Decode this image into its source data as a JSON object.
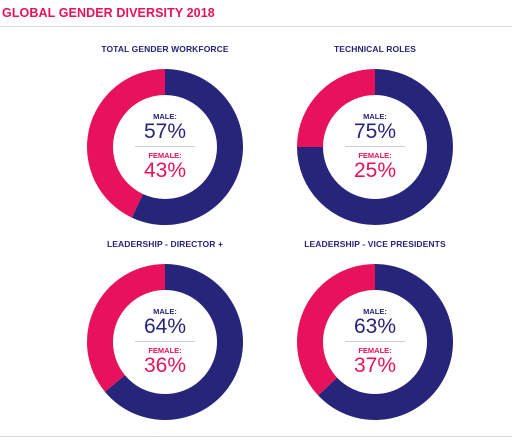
{
  "title": "GLOBAL GENDER DIVERSITY 2018",
  "colors": {
    "male": "#27257a",
    "female": "#e8115b",
    "title": "#e8115b"
  },
  "chart_data": [
    {
      "type": "pie",
      "title": "TOTAL GENDER WORKFORCE",
      "male_label": "MALE:",
      "female_label": "FEMALE:",
      "male_text": "57%",
      "female_text": "43%",
      "categories": [
        "MALE",
        "FEMALE"
      ],
      "values": [
        57,
        43
      ]
    },
    {
      "type": "pie",
      "title": "TECHNICAL ROLES",
      "male_label": "MALE:",
      "female_label": "FEMALE:",
      "male_text": "75%",
      "female_text": "25%",
      "categories": [
        "MALE",
        "FEMALE"
      ],
      "values": [
        75,
        25
      ]
    },
    {
      "type": "pie",
      "title": "LEADERSHIP - DIRECTOR +",
      "male_label": "MALE:",
      "female_label": "FEMALE:",
      "male_text": "64%",
      "female_text": "36%",
      "categories": [
        "MALE",
        "FEMALE"
      ],
      "values": [
        64,
        36
      ]
    },
    {
      "type": "pie",
      "title": "LEADERSHIP - VICE PRESIDENTS",
      "male_label": "MALE:",
      "female_label": "FEMALE:",
      "male_text": "63%",
      "female_text": "37%",
      "categories": [
        "MALE",
        "FEMALE"
      ],
      "values": [
        63,
        37
      ]
    }
  ]
}
